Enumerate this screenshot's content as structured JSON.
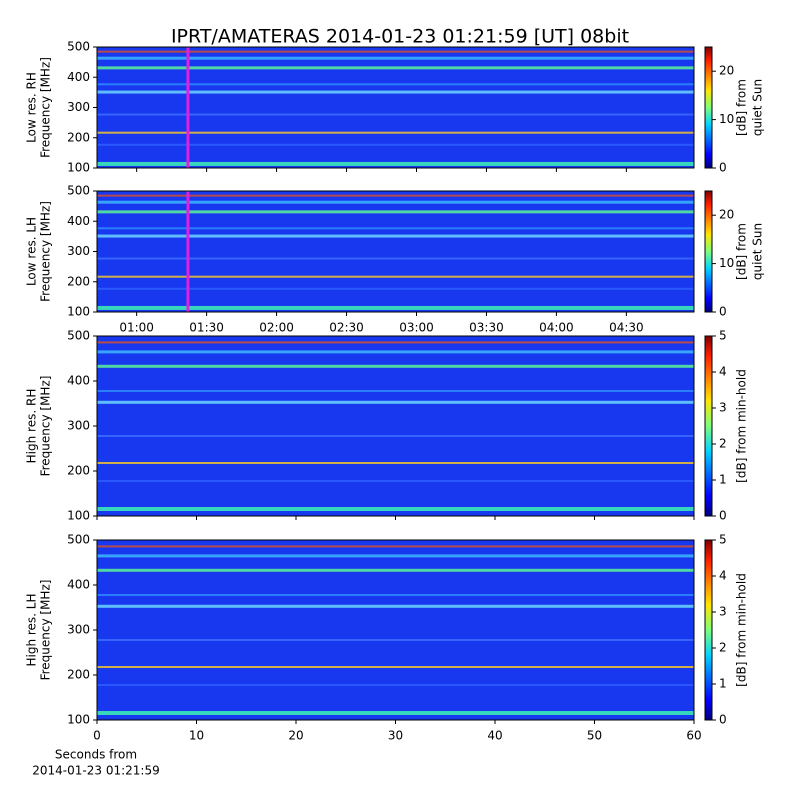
{
  "chart_data": [
    {
      "type": "heatmap",
      "title": "IPRT/AMATERAS 2014-01-23 01:21:59 [UT]   08bit",
      "ylabel": [
        "Low res. RH",
        "Frequency [MHz]"
      ],
      "ylim": [
        100,
        500
      ],
      "yticks": [
        100,
        200,
        300,
        400,
        500
      ],
      "xlim": [
        43,
        299
      ],
      "xticks": [
        60,
        90,
        120,
        150,
        180,
        210,
        240,
        270
      ],
      "xticklabels": false,
      "marker_x": 82,
      "marker_color": "#e020e0",
      "colorbar": {
        "label": [
          "[dB] from",
          "quiet Sun"
        ],
        "lim": [
          0,
          25
        ],
        "ticks": [
          0,
          10,
          20
        ]
      }
    },
    {
      "type": "heatmap",
      "ylabel": [
        "Low res. LH",
        "Frequency [MHz]"
      ],
      "ylim": [
        100,
        500
      ],
      "yticks": [
        100,
        200,
        300,
        400,
        500
      ],
      "xlim": [
        43,
        299
      ],
      "xticks": [
        {
          "value": 60,
          "label": "01:00"
        },
        {
          "value": 90,
          "label": "01:30"
        },
        {
          "value": 120,
          "label": "02:00"
        },
        {
          "value": 150,
          "label": "02:30"
        },
        {
          "value": 180,
          "label": "03:00"
        },
        {
          "value": 210,
          "label": "03:30"
        },
        {
          "value": 240,
          "label": "04:00"
        },
        {
          "value": 270,
          "label": "04:30"
        }
      ],
      "xticklabels": true,
      "marker_x": 82,
      "marker_color": "#e020e0",
      "colorbar": {
        "label": [
          "[dB] from",
          "quiet Sun"
        ],
        "lim": [
          0,
          25
        ],
        "ticks": [
          0,
          10,
          20
        ]
      }
    },
    {
      "type": "heatmap",
      "ylabel": [
        "High res. RH",
        "Frequency [MHz]"
      ],
      "ylim": [
        100,
        500
      ],
      "yticks": [
        100,
        200,
        300,
        400,
        500
      ],
      "xlim": [
        0,
        60
      ],
      "xticks": [
        0,
        10,
        20,
        30,
        40,
        50,
        60
      ],
      "xticklabels": false,
      "colorbar": {
        "label": [
          "[dB] from min-hold"
        ],
        "lim": [
          0,
          5
        ],
        "ticks": [
          0,
          1,
          2,
          3,
          4,
          5
        ]
      }
    },
    {
      "type": "heatmap",
      "ylabel": [
        "High res. LH",
        "Frequency [MHz]"
      ],
      "ylim": [
        100,
        500
      ],
      "yticks": [
        100,
        200,
        300,
        400,
        500
      ],
      "xlim": [
        0,
        60
      ],
      "xticks": [
        0,
        10,
        20,
        30,
        40,
        50,
        60
      ],
      "xticklabels": true,
      "xlabel": [
        "Seconds from",
        "2014-01-23 01:21:59"
      ],
      "colorbar": {
        "label": [
          "[dB] from min-hold"
        ],
        "lim": [
          0,
          5
        ],
        "ticks": [
          0,
          1,
          2,
          3,
          4,
          5
        ]
      }
    }
  ]
}
